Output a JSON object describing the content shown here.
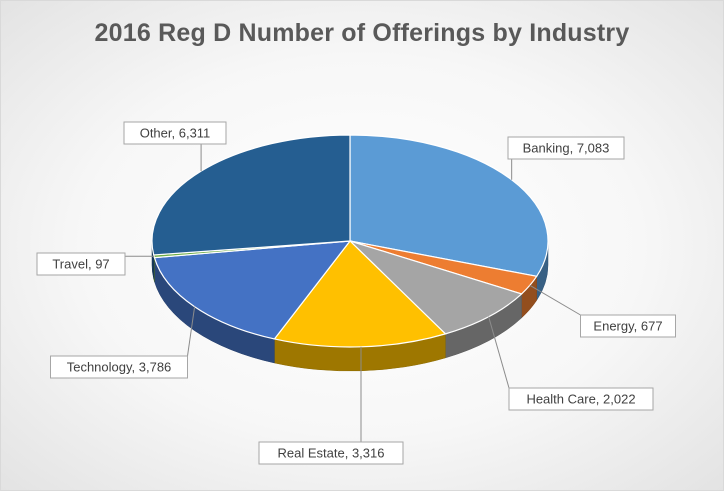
{
  "chart_data": {
    "type": "pie",
    "title": "2016 Reg D Number of Offerings by Industry",
    "slices": [
      {
        "label": "Banking",
        "value": 7083,
        "display": "Banking, 7,083",
        "color": "#5b9bd5"
      },
      {
        "label": "Energy",
        "value": 677,
        "display": "Energy, 677",
        "color": "#ed7d31"
      },
      {
        "label": "Health Care",
        "value": 2022,
        "display": "Health Care, 2,022",
        "color": "#a5a5a5"
      },
      {
        "label": "Real Estate",
        "value": 3316,
        "display": "Real Estate, 3,316",
        "color": "#ffc000"
      },
      {
        "label": "Technology",
        "value": 3786,
        "display": "Technology, 3,786",
        "color": "#4472c4"
      },
      {
        "label": "Travel",
        "value": 97,
        "display": "Travel, 97",
        "color": "#70ad47"
      },
      {
        "label": "Other",
        "value": 6311,
        "display": "Other, 6,311",
        "color": "#255e91"
      }
    ],
    "legend": "none",
    "data_labels": "callout"
  }
}
